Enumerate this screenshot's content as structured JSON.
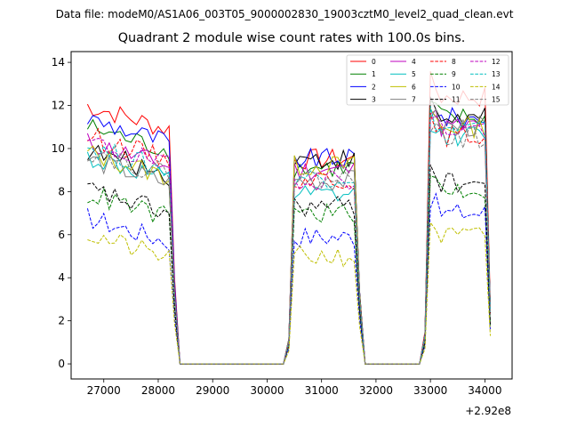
{
  "figure": {
    "suptitle": "Data file: modeM0/AS1A06_003T05_9000002830_19003cztM0_level2_quad_clean.evt"
  },
  "chart_data": {
    "type": "line",
    "title": "Quadrant 2 module wise count rates with 100.0s bins.",
    "xlabel": "",
    "ylabel": "",
    "x_offset_label": "+2.92e8",
    "xlim": [
      26400,
      34500
    ],
    "ylim": [
      -0.7,
      14.5
    ],
    "xticks": [
      27000,
      28000,
      29000,
      30000,
      31000,
      32000,
      33000,
      34000
    ],
    "yticks": [
      0,
      2,
      4,
      6,
      8,
      10,
      12,
      14
    ],
    "xtick_labels": [
      "27000",
      "28000",
      "29000",
      "30000",
      "31000",
      "32000",
      "33000",
      "34000"
    ],
    "ytick_labels": [
      "0",
      "2",
      "4",
      "6",
      "8",
      "10",
      "12",
      "14"
    ],
    "legend_position": "top-right",
    "legend_columns": 4,
    "segments": [
      {
        "start": 26700,
        "end": 28300,
        "points": 17
      },
      {
        "start": 30400,
        "end": 31700,
        "points": 14
      },
      {
        "start": 32900,
        "end": 34100,
        "points": 13
      }
    ],
    "series": [
      {
        "name": "0",
        "color": "#ff0000",
        "dash": "solid",
        "levels": [
          11.4,
          9.5,
          12.4
        ]
      },
      {
        "name": "1",
        "color": "#008000",
        "dash": "solid",
        "levels": [
          10.4,
          9.1,
          11.4
        ]
      },
      {
        "name": "2",
        "color": "#0000ff",
        "dash": "solid",
        "levels": [
          10.8,
          9.5,
          11.4
        ]
      },
      {
        "name": "3",
        "color": "#000000",
        "dash": "solid",
        "levels": [
          9.3,
          9.5,
          11.4
        ]
      },
      {
        "name": "4",
        "color": "#bf00bf",
        "dash": "solid",
        "levels": [
          9.7,
          9.0,
          11.0
        ]
      },
      {
        "name": "5",
        "color": "#00bfbf",
        "dash": "solid",
        "levels": [
          9.0,
          7.8,
          10.6
        ]
      },
      {
        "name": "6",
        "color": "#bfbf00",
        "dash": "solid",
        "levels": [
          9.2,
          9.2,
          11.0
        ]
      },
      {
        "name": "7",
        "color": "#808080",
        "dash": "solid",
        "levels": [
          8.9,
          8.5,
          11.0
        ]
      },
      {
        "name": "8",
        "color": "#ff0000",
        "dash": "dashed",
        "levels": [
          10.0,
          8.6,
          10.6
        ]
      },
      {
        "name": "9",
        "color": "#008000",
        "dash": "dashed",
        "levels": [
          7.3,
          7.0,
          8.1
        ]
      },
      {
        "name": "10",
        "color": "#0000ff",
        "dash": "dashed",
        "levels": [
          6.2,
          5.9,
          7.0
        ]
      },
      {
        "name": "11",
        "color": "#000000",
        "dash": "dashed",
        "levels": [
          7.5,
          7.3,
          8.4
        ]
      },
      {
        "name": "12",
        "color": "#bf00bf",
        "dash": "dashed",
        "levels": [
          9.7,
          8.6,
          10.9
        ]
      },
      {
        "name": "13",
        "color": "#00bfbf",
        "dash": "dashed",
        "levels": [
          9.5,
          8.7,
          10.9
        ]
      },
      {
        "name": "14",
        "color": "#bfbf00",
        "dash": "dashed",
        "levels": [
          5.4,
          5.0,
          5.9
        ]
      },
      {
        "name": "15",
        "color": "#808080",
        "dash": "dashed",
        "levels": [
          9.3,
          8.6,
          10.5
        ]
      }
    ]
  }
}
